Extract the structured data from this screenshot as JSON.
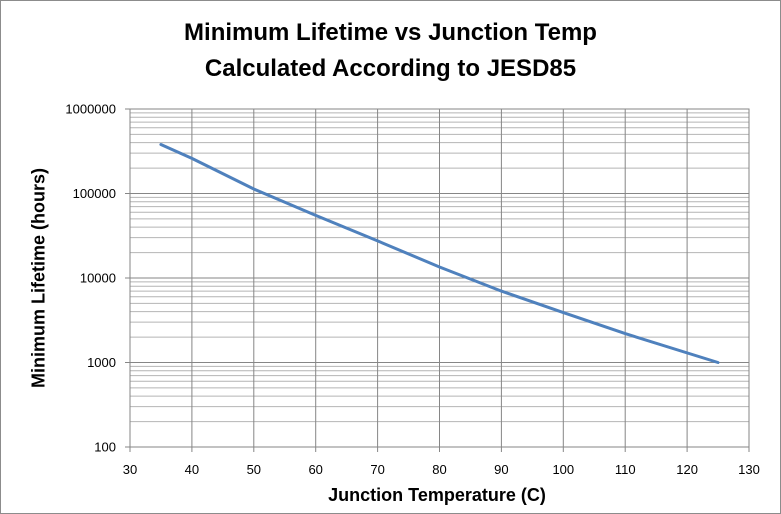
{
  "chart_data": {
    "type": "line",
    "title": [
      "Minimum Lifetime vs Junction Temp",
      "Calculated According to JESD85"
    ],
    "xlabel": "Junction Temperature (C)",
    "ylabel": "Minimum Lifetime (hours)",
    "xlim": [
      30,
      130
    ],
    "ylim": [
      100,
      1000000
    ],
    "yscale": "log",
    "xticks": [
      "30",
      "40",
      "50",
      "60",
      "70",
      "80",
      "90",
      "100",
      "110",
      "120",
      "130"
    ],
    "yticks": [
      "100",
      "1000",
      "10000",
      "100000",
      "1000000"
    ],
    "grid": true,
    "legend": "none",
    "series": [
      {
        "color": "#4f81bd",
        "x": [
          35,
          40,
          50,
          60,
          70,
          80,
          90,
          100,
          110,
          125
        ],
        "y": [
          380000,
          260000,
          113000,
          55000,
          27500,
          13500,
          7000,
          3900,
          2200,
          1000
        ]
      }
    ]
  }
}
